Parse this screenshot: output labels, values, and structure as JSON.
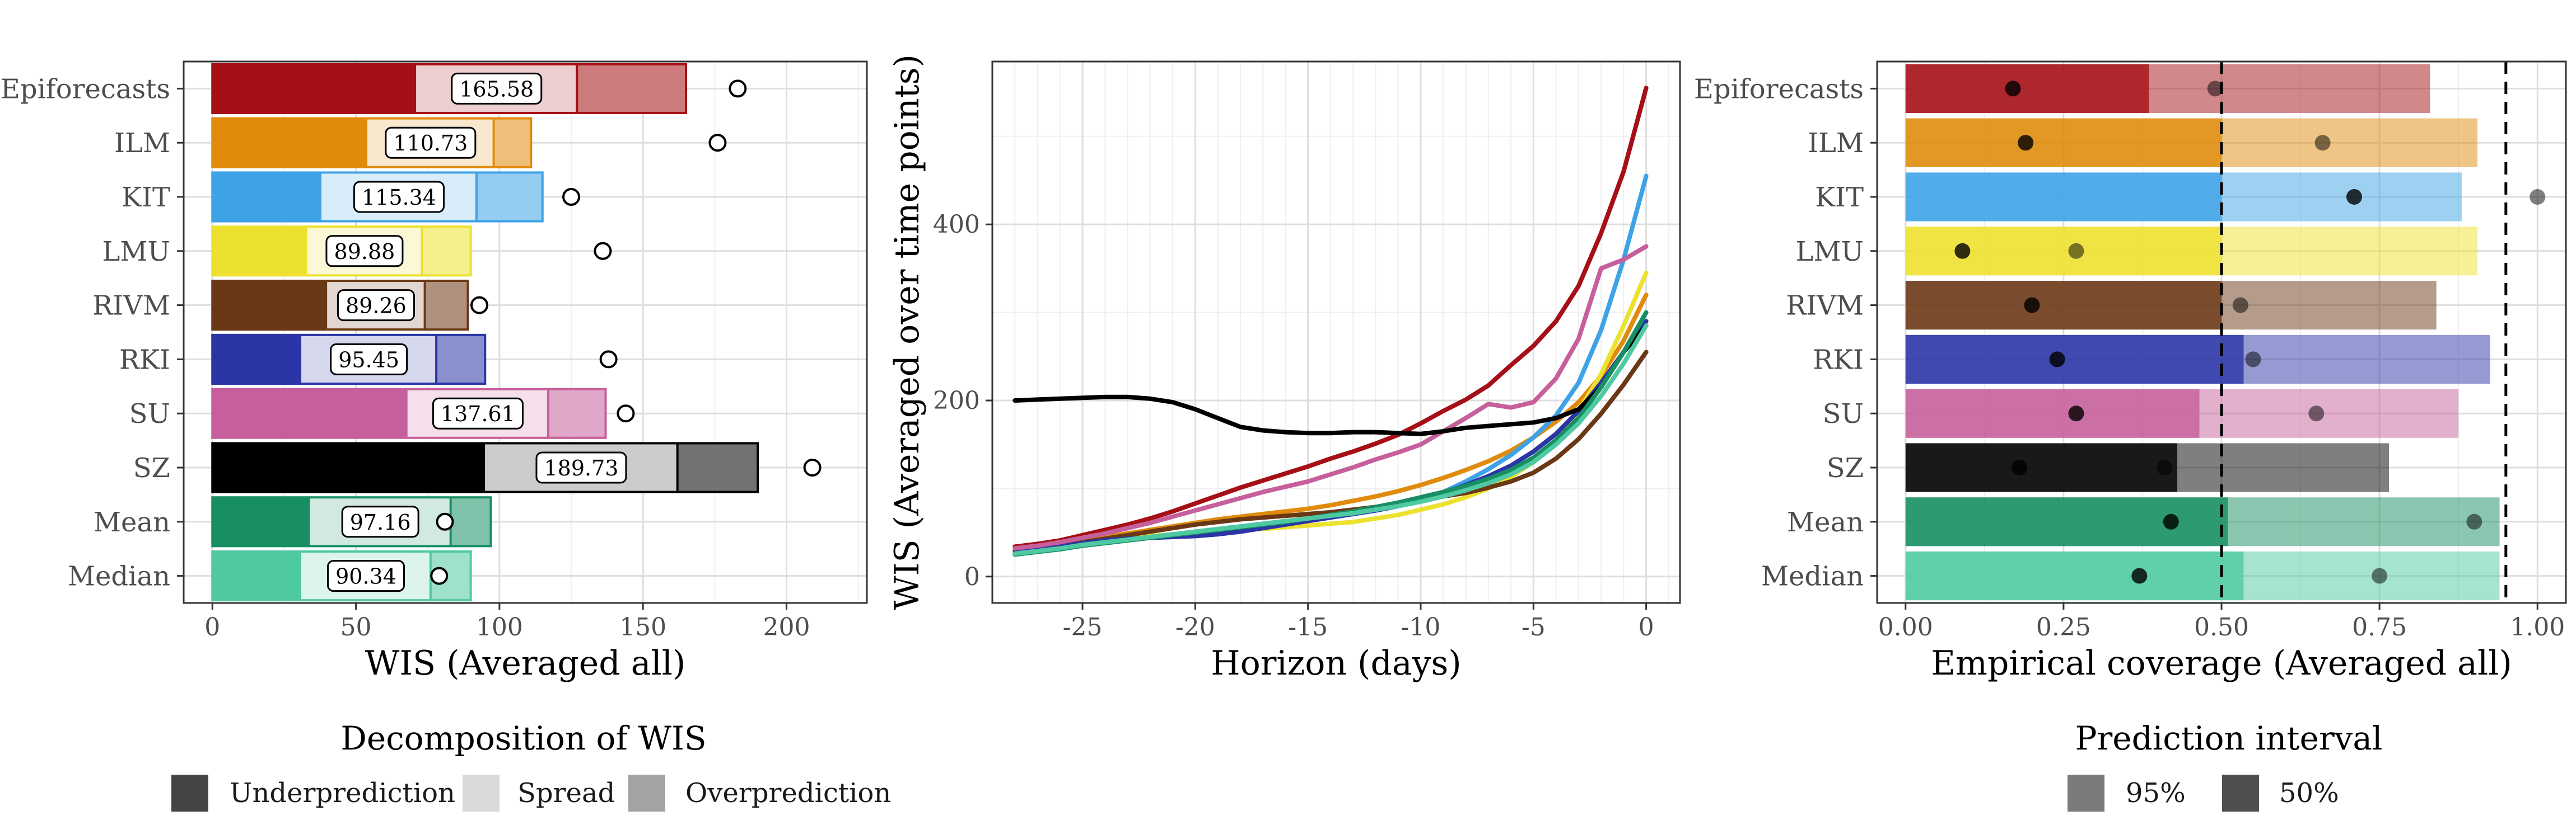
{
  "models": [
    "Epiforecasts",
    "ILM",
    "KIT",
    "LMU",
    "RIVM",
    "RKI",
    "SU",
    "SZ",
    "Mean",
    "Median"
  ],
  "colors": {
    "Epiforecasts": "#a50f15",
    "ILM": "#e08b0c",
    "KIT": "#3ea2e6",
    "LMU": "#ede12f",
    "RIVM": "#6b3815",
    "RKI": "#2b35a6",
    "SU": "#c65f9b",
    "SZ": "#000000",
    "Mean": "#178f62",
    "Median": "#4fc9a2"
  },
  "chart_data": [
    {
      "type": "bar",
      "subtype": "stacked-horizontal",
      "categories": [
        "Epiforecasts",
        "ILM",
        "KIT",
        "LMU",
        "RIVM",
        "RKI",
        "SU",
        "SZ",
        "Mean",
        "Median"
      ],
      "series": [
        {
          "name": "Underprediction",
          "values": [
            71,
            54,
            38,
            33,
            40,
            31,
            68,
            95,
            34,
            31
          ]
        },
        {
          "name": "Spread",
          "values": [
            56,
            44,
            54,
            40,
            34,
            47,
            49,
            67,
            49,
            45
          ]
        },
        {
          "name": "Overprediction",
          "values": [
            38,
            13,
            23,
            17,
            15,
            17,
            20,
            28,
            14,
            14
          ]
        }
      ],
      "data_labels": [
        "165.58",
        "110.73",
        "115.34",
        "89.88",
        "89.26",
        "95.45",
        "137.61",
        "189.73",
        "97.16",
        "90.34"
      ],
      "points": [
        183,
        176,
        125,
        136,
        93,
        138,
        144,
        209,
        81,
        79
      ],
      "xlabel": "WIS (Averaged all)",
      "xlim": [
        -10,
        228
      ],
      "xticks": [
        "0",
        "50",
        "100",
        "150",
        "200"
      ],
      "grid": true
    },
    {
      "type": "line",
      "x": [
        -28,
        -27,
        -26,
        -25,
        -24,
        -23,
        -22,
        -21,
        -20,
        -19,
        -18,
        -17,
        -16,
        -15,
        -14,
        -13,
        -12,
        -11,
        -10,
        -9,
        -8,
        -7,
        -6,
        -5,
        -4,
        -3,
        -2,
        -1,
        0
      ],
      "series": [
        {
          "name": "Epiforecasts",
          "values": [
            34,
            37,
            41,
            47,
            53,
            59,
            66,
            74,
            83,
            92,
            101,
            109,
            117,
            125,
            134,
            142,
            151,
            161,
            174,
            188,
            201,
            217,
            240,
            262,
            290,
            330,
            390,
            460,
            555
          ]
        },
        {
          "name": "ILM",
          "values": [
            30,
            33,
            37,
            41,
            45,
            49,
            53,
            57,
            61,
            65,
            68,
            71,
            74,
            77,
            81,
            86,
            91,
            97,
            104,
            112,
            121,
            131,
            143,
            158,
            176,
            198,
            228,
            268,
            320
          ]
        },
        {
          "name": "KIT",
          "values": [
            27,
            30,
            34,
            38,
            41,
            43,
            44,
            45,
            46,
            48,
            51,
            56,
            61,
            65,
            69,
            73,
            77,
            81,
            87,
            96,
            108,
            122,
            138,
            158,
            183,
            220,
            280,
            360,
            455
          ]
        },
        {
          "name": "LMU",
          "values": [
            27,
            30,
            33,
            37,
            40,
            43,
            46,
            48,
            50,
            52,
            53,
            54,
            56,
            58,
            60,
            62,
            66,
            70,
            76,
            82,
            90,
            100,
            113,
            130,
            155,
            188,
            230,
            285,
            345
          ]
        },
        {
          "name": "RIVM",
          "values": [
            28,
            31,
            35,
            39,
            43,
            47,
            51,
            55,
            59,
            62,
            65,
            67,
            69,
            71,
            73,
            76,
            79,
            83,
            87,
            91,
            95,
            101,
            108,
            118,
            134,
            156,
            185,
            218,
            255
          ]
        },
        {
          "name": "RKI",
          "values": [
            27,
            30,
            34,
            38,
            41,
            43,
            44,
            45,
            46,
            48,
            51,
            55,
            59,
            63,
            67,
            71,
            75,
            80,
            87,
            95,
            104,
            114,
            126,
            142,
            162,
            188,
            220,
            255,
            290
          ]
        },
        {
          "name": "SU",
          "values": [
            32,
            35,
            39,
            44,
            49,
            55,
            61,
            68,
            75,
            82,
            89,
            96,
            102,
            108,
            116,
            124,
            133,
            141,
            150,
            165,
            180,
            196,
            192,
            198,
            225,
            270,
            350,
            360,
            375
          ]
        },
        {
          "name": "SZ",
          "values": [
            200,
            201,
            202,
            203,
            204,
            204,
            202,
            198,
            190,
            180,
            170,
            166,
            164,
            163,
            163,
            164,
            164,
            163,
            162,
            165,
            169,
            171,
            173,
            175,
            180,
            190,
            215,
            255,
            285
          ]
        },
        {
          "name": "Mean",
          "values": [
            25,
            28,
            31,
            35,
            38,
            41,
            44,
            47,
            50,
            53,
            56,
            59,
            62,
            66,
            70,
            74,
            79,
            84,
            90,
            96,
            103,
            111,
            121,
            135,
            155,
            180,
            215,
            255,
            300
          ]
        },
        {
          "name": "Median",
          "values": [
            26,
            29,
            32,
            36,
            39,
            42,
            45,
            48,
            51,
            54,
            57,
            60,
            63,
            66,
            69,
            72,
            76,
            80,
            85,
            91,
            98,
            106,
            116,
            130,
            150,
            174,
            205,
            242,
            285
          ]
        }
      ],
      "xlabel": "Horizon (days)",
      "ylabel": "WIS (Averaged over time points)",
      "xlim": [
        -29,
        1.5
      ],
      "ylim": [
        -30,
        585
      ],
      "xticks": [
        "-25",
        "-20",
        "-15",
        "-10",
        "-5",
        "0"
      ],
      "yticks": [
        "0",
        "200",
        "400"
      ],
      "grid": true
    },
    {
      "type": "bar",
      "subtype": "horizontal-coverage",
      "categories": [
        "Epiforecasts",
        "ILM",
        "KIT",
        "LMU",
        "RIVM",
        "RKI",
        "SU",
        "SZ",
        "Mean",
        "Median"
      ],
      "series": [
        {
          "name": "95%",
          "values": [
            0.83,
            0.905,
            0.88,
            0.905,
            0.84,
            0.925,
            0.875,
            0.765,
            0.94,
            0.94
          ],
          "points": [
            0.49,
            0.66,
            1.0,
            0.27,
            0.53,
            0.55,
            0.65,
            0.41,
            0.9,
            0.75
          ]
        },
        {
          "name": "50%",
          "values": [
            0.385,
            0.5,
            0.5,
            0.5,
            0.5,
            0.535,
            0.465,
            0.43,
            0.51,
            0.535
          ],
          "points": [
            0.17,
            0.19,
            0.71,
            0.09,
            0.2,
            0.24,
            0.27,
            0.18,
            0.42,
            0.37
          ]
        }
      ],
      "reference_lines": [
        0.5,
        0.95
      ],
      "xlabel": "Empirical coverage (Averaged all)",
      "xlim": [
        -0.045,
        1.045
      ],
      "xticks": [
        "0.00",
        "0.25",
        "0.50",
        "0.75",
        "1.00"
      ],
      "grid": true
    }
  ],
  "legends": {
    "wis": {
      "title": "Decomposition of WIS",
      "items": [
        "Underprediction",
        "Spread",
        "Overprediction"
      ]
    },
    "interval": {
      "title": "Prediction interval",
      "items": [
        "95%",
        "50%"
      ]
    }
  }
}
